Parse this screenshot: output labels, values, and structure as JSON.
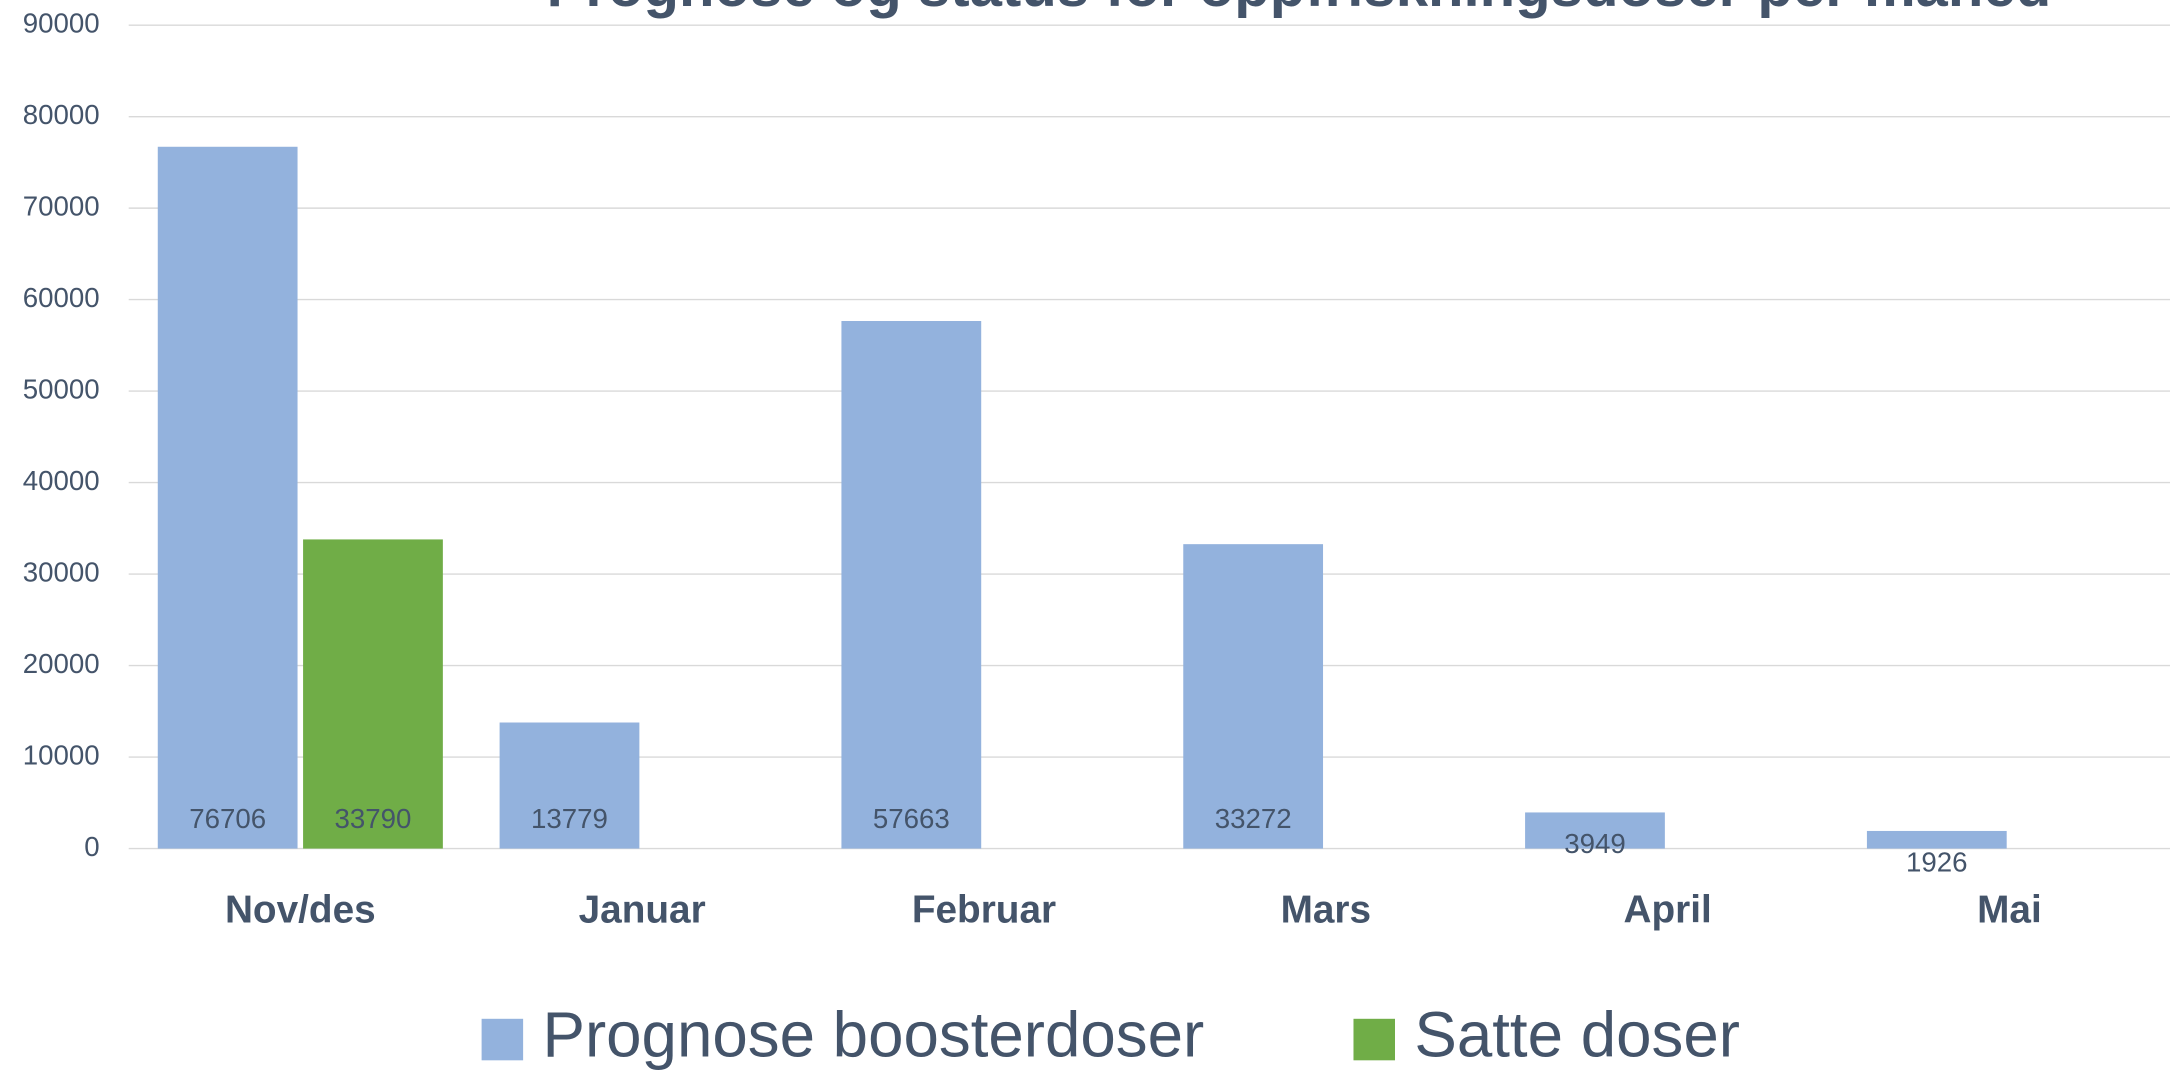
{
  "chart_data": {
    "type": "bar",
    "title": "Prognose og status for oppfriskningsdoser per måned",
    "categories": [
      "Nov/des",
      "Januar",
      "Februar",
      "Mars",
      "April",
      "Mai"
    ],
    "series": [
      {
        "name": "Prognose boosterdoser",
        "color": "#93b2dd",
        "values": [
          76706,
          13779,
          57663,
          33272,
          3949,
          1926
        ]
      },
      {
        "name": "Satte doser",
        "color": "#70ad47",
        "values": [
          33790,
          null,
          null,
          null,
          null,
          null
        ]
      }
    ],
    "ylim": [
      0,
      90000
    ],
    "yticks": [
      0,
      10000,
      20000,
      30000,
      40000,
      50000,
      60000,
      70000,
      80000,
      90000
    ],
    "grid": true,
    "legend": "bottom"
  }
}
